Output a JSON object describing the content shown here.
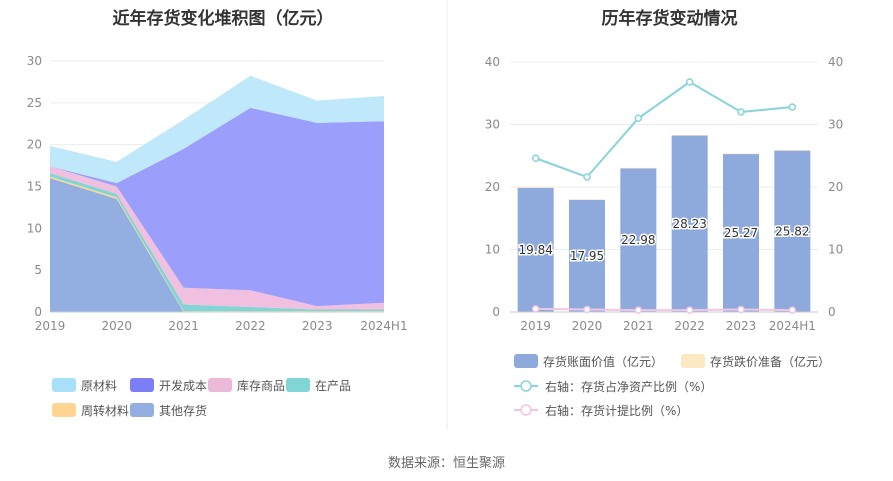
{
  "chart_data": [
    {
      "type": "area",
      "stacked": true,
      "title": "近年存货变化堆积图（亿元）",
      "categories": [
        "2019",
        "2020",
        "2021",
        "2022",
        "2023",
        "2024H1"
      ],
      "ylim": [
        0,
        30
      ],
      "yticks": [
        0,
        5,
        10,
        15,
        20,
        25,
        30
      ],
      "grid": true,
      "legend_position": "bottom",
      "series": [
        {
          "name": "其他存货",
          "color": "#93aee0",
          "values": [
            16.0,
            13.5,
            0.0,
            0.0,
            0.0,
            0.0
          ]
        },
        {
          "name": "周转材料",
          "color": "#ffd591",
          "values": [
            0.2,
            0.2,
            0.1,
            0.1,
            0.1,
            0.1
          ]
        },
        {
          "name": "在产品",
          "color": "#7fd6d4",
          "values": [
            0.4,
            0.4,
            0.8,
            0.5,
            0.2,
            0.2
          ]
        },
        {
          "name": "库存商品",
          "color": "#f1bfe0",
          "values": [
            0.8,
            0.9,
            2.0,
            2.0,
            0.4,
            0.8
          ]
        },
        {
          "name": "开发成本",
          "color": "#9b9efa",
          "values": [
            0.0,
            0.4,
            16.6,
            21.8,
            21.9,
            21.7
          ]
        },
        {
          "name": "原材料",
          "color": "#c0e8fb",
          "values": [
            2.44,
            2.55,
            3.48,
            3.83,
            2.67,
            3.02
          ]
        }
      ],
      "legend_order": [
        "原材料",
        "开发成本",
        "库存商品",
        "在产品",
        "周转材料",
        "其他存货"
      ],
      "legend_colors": {
        "原材料": "#a8e0fa",
        "开发成本": "#7b7ef6",
        "库存商品": "#ebb8d8",
        "在产品": "#7fd6d4",
        "周转材料": "#ffd591",
        "其他存货": "#93aee0"
      }
    },
    {
      "type": "bar+line",
      "title": "历年存货变动情况",
      "categories": [
        "2019",
        "2020",
        "2021",
        "2022",
        "2023",
        "2024H1"
      ],
      "ylim_left": [
        0,
        40
      ],
      "ylim_right": [
        0,
        40
      ],
      "yticks": [
        0,
        10,
        20,
        30,
        40
      ],
      "grid": true,
      "legend_position": "bottom",
      "bars": [
        {
          "name": "存货账面价值（亿元）",
          "color": "#8eaadc",
          "values": [
            19.84,
            17.95,
            22.98,
            28.23,
            25.27,
            25.82
          ],
          "labels": [
            "19.84",
            "17.95",
            "22.98",
            "28.23",
            "25.27",
            "25.82"
          ]
        },
        {
          "name": "存货跌价准备（亿元）",
          "color": "#fde8c4",
          "values": [
            0.1,
            0.1,
            0.1,
            0.1,
            0.1,
            0.1
          ]
        }
      ],
      "lines": [
        {
          "name": "右轴：存货占净资产比例（%）",
          "color": "#86d4dc",
          "axis": "right",
          "values": [
            24.6,
            21.6,
            31.0,
            36.8,
            32.0,
            32.8
          ]
        },
        {
          "name": "右轴：存货计提比例（%）",
          "color": "#f0c6e4",
          "axis": "right",
          "values": [
            0.5,
            0.4,
            0.3,
            0.3,
            0.4,
            0.3
          ]
        }
      ]
    }
  ],
  "source": "数据来源：恒生聚源"
}
